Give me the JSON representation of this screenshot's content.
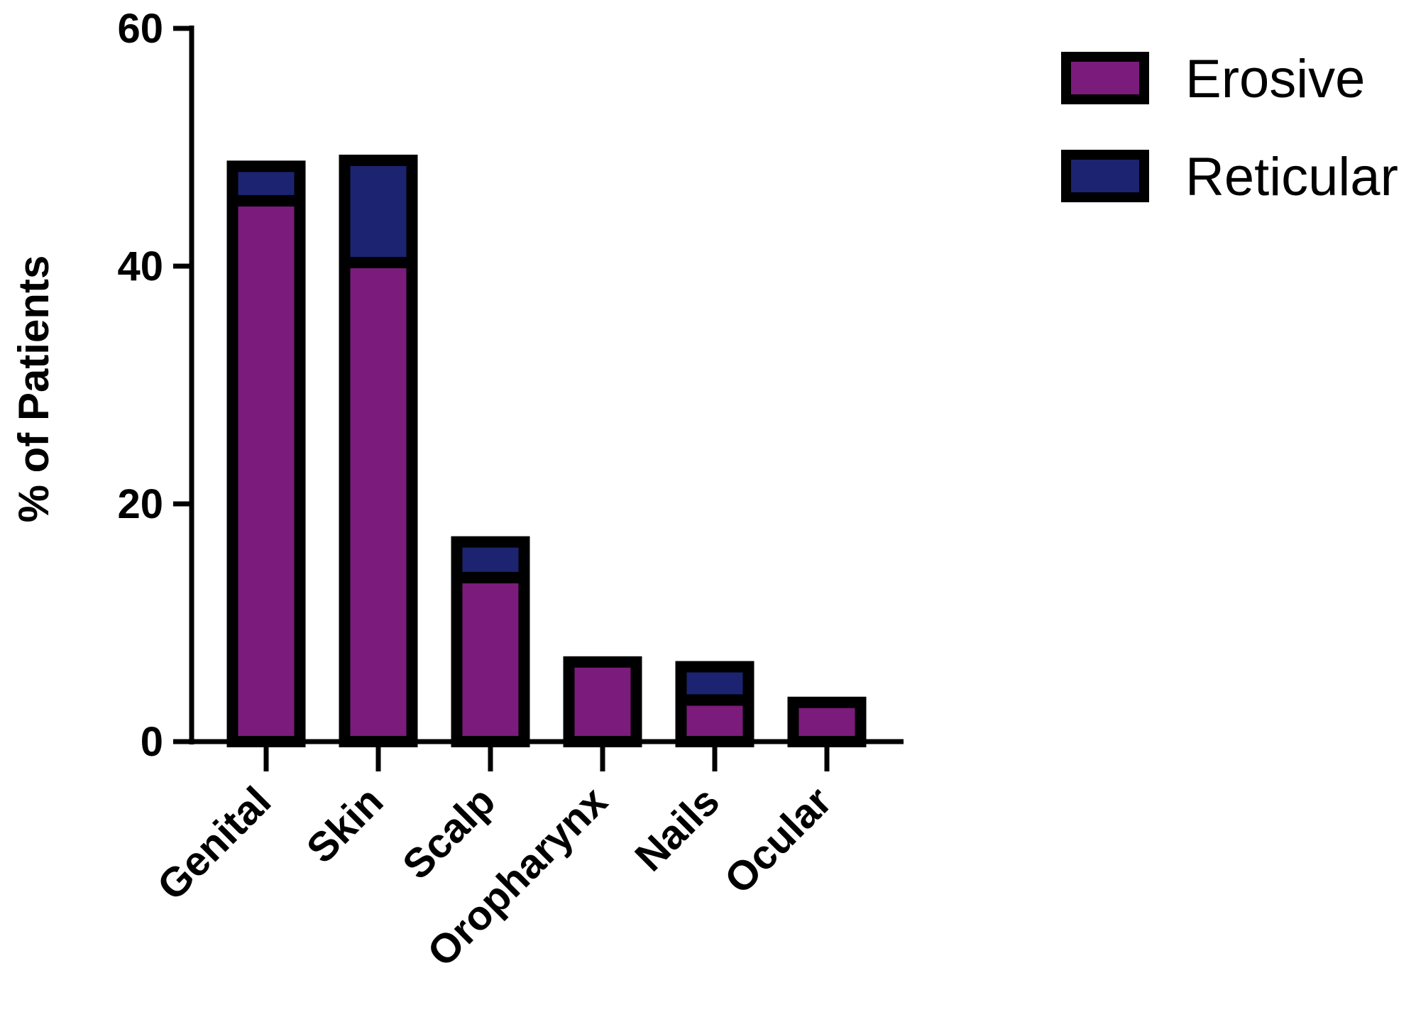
{
  "chart_data": {
    "type": "bar",
    "stacked": true,
    "categories": [
      "Genital",
      "Skin",
      "Scalp",
      "Oropharynx",
      "Nails",
      "Ocular"
    ],
    "series": [
      {
        "name": "Erosive",
        "values": [
          45.5,
          40.3,
          13.8,
          6.7,
          3.5,
          3.3
        ]
      },
      {
        "name": "Reticular",
        "values": [
          2.9,
          8.6,
          3.0,
          0,
          2.8,
          0
        ]
      }
    ],
    "xlabel": "",
    "ylabel": "% of Patients",
    "ylim": [
      0,
      60
    ],
    "yticks": [
      0,
      20,
      40,
      60
    ],
    "grid": false,
    "legend_position": "top-right",
    "colors": {
      "Erosive": "#7b1b7b",
      "Reticular": "#1c2370",
      "outline": "#000000"
    }
  }
}
